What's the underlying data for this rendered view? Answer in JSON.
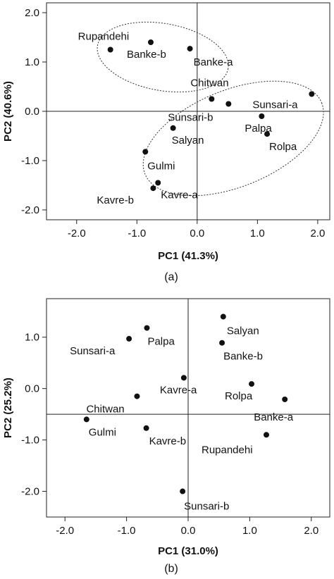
{
  "chart_data": [
    {
      "type": "scatter",
      "panel_label": "(a)",
      "xlabel": "PC1 (41.3%)",
      "ylabel": "PC2 (40.6%)",
      "xlim": [
        -2.5,
        2.2
      ],
      "ylim": [
        -2.2,
        2.2
      ],
      "x_ticks": [
        "-2.0",
        "-1.0",
        "0.0",
        "1.0",
        "2.0"
      ],
      "y_ticks": [
        "2.0",
        "1.0",
        "0.0",
        "-1.0",
        "-2.0"
      ],
      "reference_lines": {
        "x": 0.0,
        "y": 0.0
      },
      "grid": false,
      "points": [
        {
          "label": "Rupandehi",
          "x": -1.44,
          "y": 1.25
        },
        {
          "label": "Banke-b",
          "x": -0.77,
          "y": 1.4
        },
        {
          "label": "Banke-a",
          "x": -0.12,
          "y": 1.27
        },
        {
          "label": "Chitwan",
          "x": 0.24,
          "y": 0.25
        },
        {
          "label": "Sunsari-b",
          "x": 0.52,
          "y": 0.15
        },
        {
          "label": "Sunsari-a",
          "x": 1.9,
          "y": 0.35
        },
        {
          "label": "Palpa",
          "x": 1.07,
          "y": -0.1
        },
        {
          "label": "Rolpa",
          "x": 1.16,
          "y": -0.46
        },
        {
          "label": "Salyan",
          "x": -0.4,
          "y": -0.34
        },
        {
          "label": "Gulmi",
          "x": -0.86,
          "y": -0.82
        },
        {
          "label": "Kavre-a",
          "x": -0.65,
          "y": -1.45
        },
        {
          "label": "Kavre-b",
          "x": -0.73,
          "y": -1.56
        }
      ],
      "ellipses": [
        {
          "cx": -0.57,
          "cy": 1.1,
          "rx": 1.1,
          "ry": 0.68,
          "rotation_deg": -10
        },
        {
          "cx": 0.6,
          "cy": -0.55,
          "rx": 1.58,
          "ry": 0.98,
          "rotation_deg": 22
        }
      ]
    },
    {
      "type": "scatter",
      "panel_label": "(b)",
      "xlabel": "PC1 (31.0%)",
      "ylabel": "PC2 (25.2%)",
      "xlim": [
        -2.3,
        2.3
      ],
      "ylim": [
        -2.5,
        1.75
      ],
      "x_ticks": [
        "-2.0",
        "-1.0",
        "0.0",
        "1.0",
        "2.0"
      ],
      "y_ticks": [
        "1.0",
        "0.0",
        "-1.0",
        "-2.0"
      ],
      "reference_lines": {
        "x": 0.0,
        "y": -0.5
      },
      "grid": false,
      "points": [
        {
          "label": "Salyan",
          "x": 0.57,
          "y": 1.4
        },
        {
          "label": "Palpa",
          "x": -0.67,
          "y": 1.18
        },
        {
          "label": "Sunsari-a",
          "x": -0.96,
          "y": 0.97
        },
        {
          "label": "Banke-b",
          "x": 0.55,
          "y": 0.89
        },
        {
          "label": "Kavre-a",
          "x": -0.07,
          "y": 0.21
        },
        {
          "label": "Rolpa",
          "x": 1.03,
          "y": 0.09
        },
        {
          "label": "Banke-a",
          "x": 1.57,
          "y": -0.21
        },
        {
          "label": "Chitwan",
          "x": -0.83,
          "y": -0.15
        },
        {
          "label": "Gulmi",
          "x": -1.65,
          "y": -0.6
        },
        {
          "label": "Kavre-b",
          "x": -0.68,
          "y": -0.77
        },
        {
          "label": "Rupandehi",
          "x": 1.27,
          "y": -0.9
        },
        {
          "label": "Sunsari-b",
          "x": -0.09,
          "y": -2.0
        }
      ]
    }
  ]
}
